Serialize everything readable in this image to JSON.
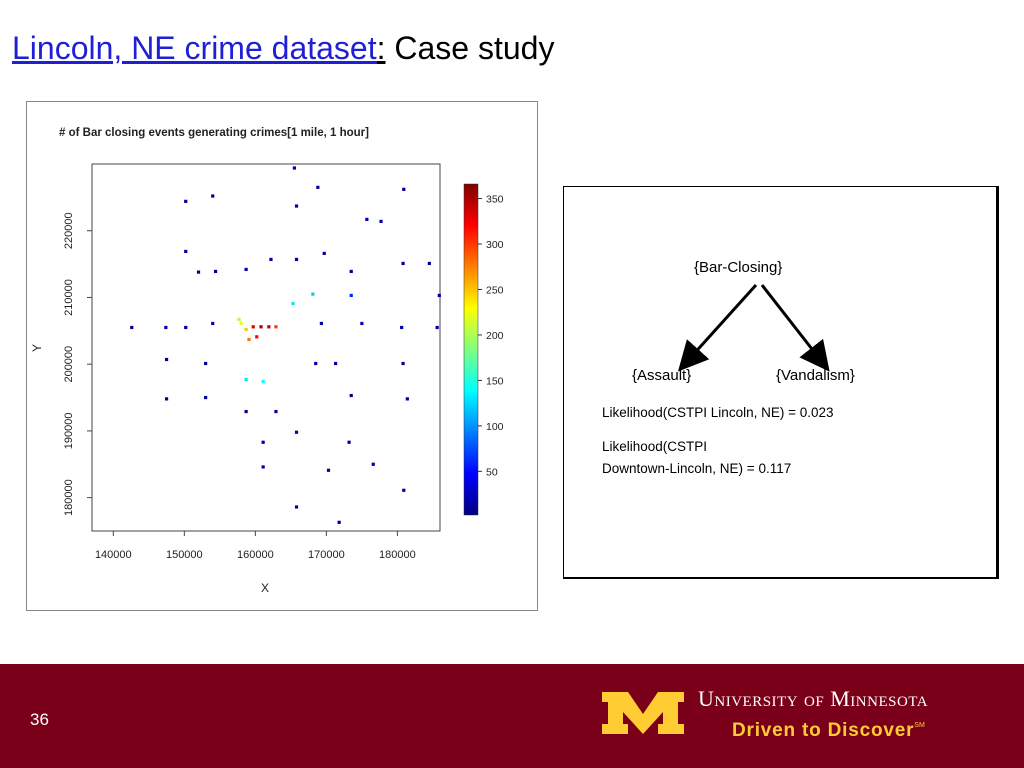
{
  "title": {
    "link": "Lincoln, NE crime dataset",
    "separator": ":",
    "rest": "Case study"
  },
  "chart_data": {
    "type": "scatter",
    "title": "# of Bar closing events generating crimes[1 mile, 1 hour]",
    "x_label": "X",
    "y_label": "Y",
    "xlim": [
      137000,
      186000
    ],
    "ylim": [
      175000,
      230000
    ],
    "xticks": [
      140000,
      150000,
      160000,
      170000,
      180000
    ],
    "yticks": [
      180000,
      190000,
      200000,
      210000,
      220000
    ],
    "colorbar": {
      "lim": [
        2,
        366
      ],
      "ticks": [
        50,
        100,
        150,
        200,
        250,
        300,
        350
      ],
      "colormap": [
        "#00007f",
        "#0000ff",
        "#007fff",
        "#00ffff",
        "#7fff7f",
        "#ffff00",
        "#ff7f00",
        "#ff0000",
        "#7f0000"
      ]
    },
    "series": [
      {
        "x": [
          150200,
          154000,
          165500,
          165800,
          168800,
          180900,
          175700,
          177700,
          150200,
          152000,
          154400,
          158700,
          162200,
          165800,
          169700,
          173500,
          180800,
          184500,
          142600,
          147400,
          150200,
          154000,
          169300,
          175000,
          180600,
          185600,
          185900,
          173500,
          168100,
          165300,
          158000,
          158700,
          159700,
          160800,
          161900,
          162900,
          159100,
          160200,
          157700,
          147500,
          153000,
          158700,
          161100,
          168500,
          171300,
          180800,
          147500,
          153000,
          158700,
          162900,
          173500,
          181400,
          161100,
          165800,
          173200,
          161100,
          170300,
          176600,
          165800,
          171800,
          180900
        ],
        "y": [
          224400,
          225200,
          229400,
          223700,
          226500,
          226200,
          221700,
          221400,
          216900,
          213800,
          213900,
          214200,
          215700,
          215700,
          216600,
          213900,
          215100,
          215100,
          205500,
          205500,
          205500,
          206100,
          206100,
          206100,
          205500,
          205500,
          210300,
          210300,
          210500,
          209100,
          206100,
          205200,
          205600,
          205600,
          205600,
          205600,
          203700,
          204100,
          206700,
          200700,
          200100,
          197700,
          197400,
          200100,
          200100,
          200100,
          194800,
          195000,
          192900,
          192900,
          195300,
          194800,
          188300,
          189800,
          188300,
          184600,
          184100,
          185000,
          178600,
          176300,
          181100
        ],
        "values": [
          10,
          8,
          15,
          20,
          12,
          6,
          25,
          18,
          14,
          10,
          12,
          20,
          16,
          22,
          14,
          10,
          12,
          8,
          6,
          18,
          12,
          22,
          16,
          24,
          14,
          10,
          8,
          60,
          120,
          130,
          220,
          250,
          330,
          350,
          340,
          300,
          280,
          320,
          200,
          8,
          10,
          130,
          140,
          12,
          14,
          10,
          8,
          12,
          14,
          16,
          10,
          12,
          14,
          18,
          12,
          20,
          14,
          16,
          12,
          8,
          10
        ]
      }
    ]
  },
  "diagram": {
    "nodes": [
      "{Bar-Closing}",
      "{Assault}",
      "{Vandalism}"
    ],
    "lines": [
      "Likelihood(CSTPI Lincoln, NE) = 0.023",
      "Likelihood(CSTPI",
      "Downtown-Lincoln, NE) = 0.117"
    ]
  },
  "footer": {
    "page_number": "36",
    "university": "University of Minnesota",
    "tagline": "Driven to Discover",
    "tagline_mark": "SM"
  }
}
